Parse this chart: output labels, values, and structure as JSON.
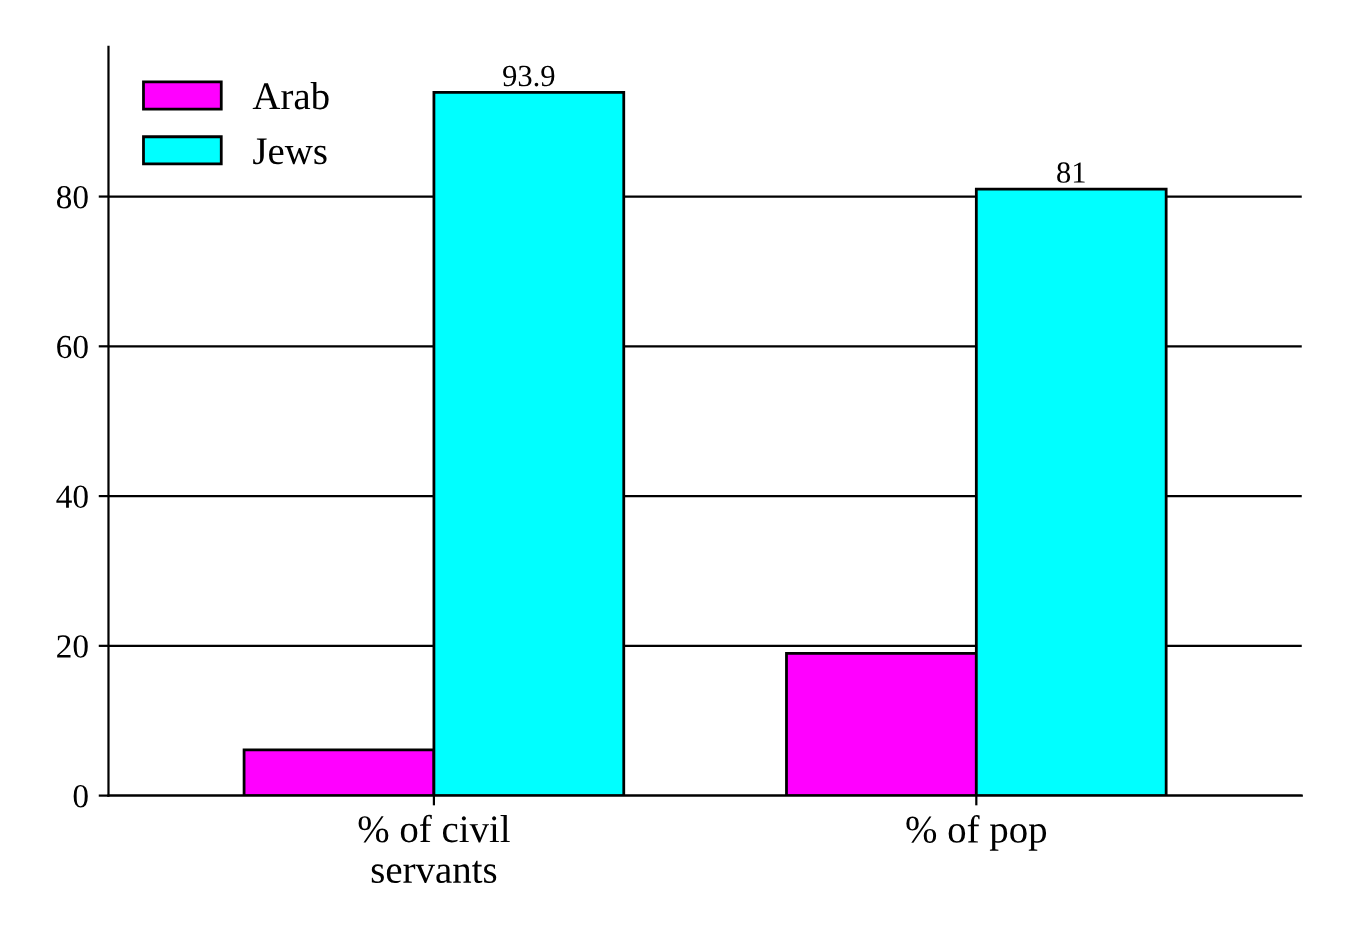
{
  "chart_data": {
    "type": "bar",
    "categories": [
      "% of civil\nservants",
      "% of pop"
    ],
    "series": [
      {
        "name": "Arab",
        "color": "#ff00ff",
        "values": [
          6.1,
          19
        ]
      },
      {
        "name": "Jews",
        "color": "#00ffff",
        "values": [
          93.9,
          81
        ],
        "value_labels": [
          "93.9",
          "81"
        ]
      }
    ],
    "ylim": [
      0,
      100
    ],
    "yticks": [
      0,
      20,
      40,
      60,
      80
    ],
    "grid": "y",
    "legend": "top left"
  }
}
